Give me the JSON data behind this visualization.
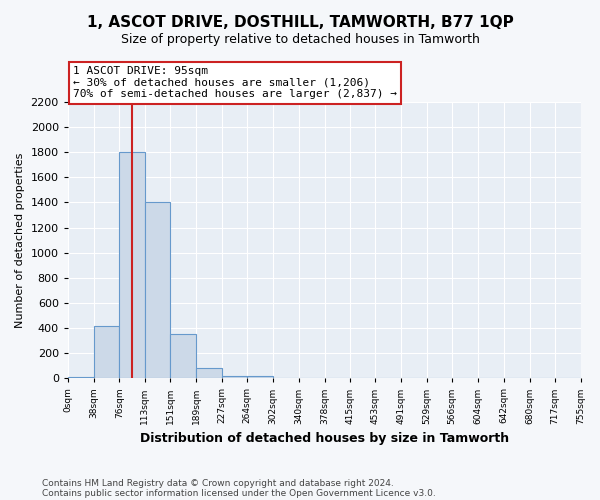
{
  "title": "1, ASCOT DRIVE, DOSTHILL, TAMWORTH, B77 1QP",
  "subtitle": "Size of property relative to detached houses in Tamworth",
  "xlabel": "Distribution of detached houses by size in Tamworth",
  "ylabel": "Number of detached properties",
  "footnote1": "Contains HM Land Registry data © Crown copyright and database right 2024.",
  "footnote2": "Contains public sector information licensed under the Open Government Licence v3.0.",
  "bar_edges": [
    0,
    38,
    76,
    113,
    151,
    189,
    227,
    264,
    302,
    340,
    378,
    415,
    453,
    491,
    529,
    566,
    604,
    642,
    680,
    717,
    755
  ],
  "bar_heights": [
    10,
    420,
    1800,
    1400,
    350,
    80,
    20,
    20,
    5,
    2,
    1,
    1,
    0,
    0,
    0,
    0,
    0,
    0,
    0,
    0
  ],
  "bar_color": "#ccd9e8",
  "bar_edge_color": "#6699cc",
  "property_line_x": 95,
  "property_line_color": "#cc2222",
  "annotation_text": "1 ASCOT DRIVE: 95sqm\n← 30% of detached houses are smaller (1,206)\n70% of semi-detached houses are larger (2,837) →",
  "annotation_box_color": "#cc2222",
  "annotation_text_color": "#000000",
  "ylim": [
    0,
    2200
  ],
  "yticks": [
    0,
    200,
    400,
    600,
    800,
    1000,
    1200,
    1400,
    1600,
    1800,
    2000,
    2200
  ],
  "bg_color": "#f5f7fa",
  "plot_bg_color": "#e8eef5",
  "grid_color": "#ffffff",
  "title_fontsize": 11,
  "subtitle_fontsize": 9
}
